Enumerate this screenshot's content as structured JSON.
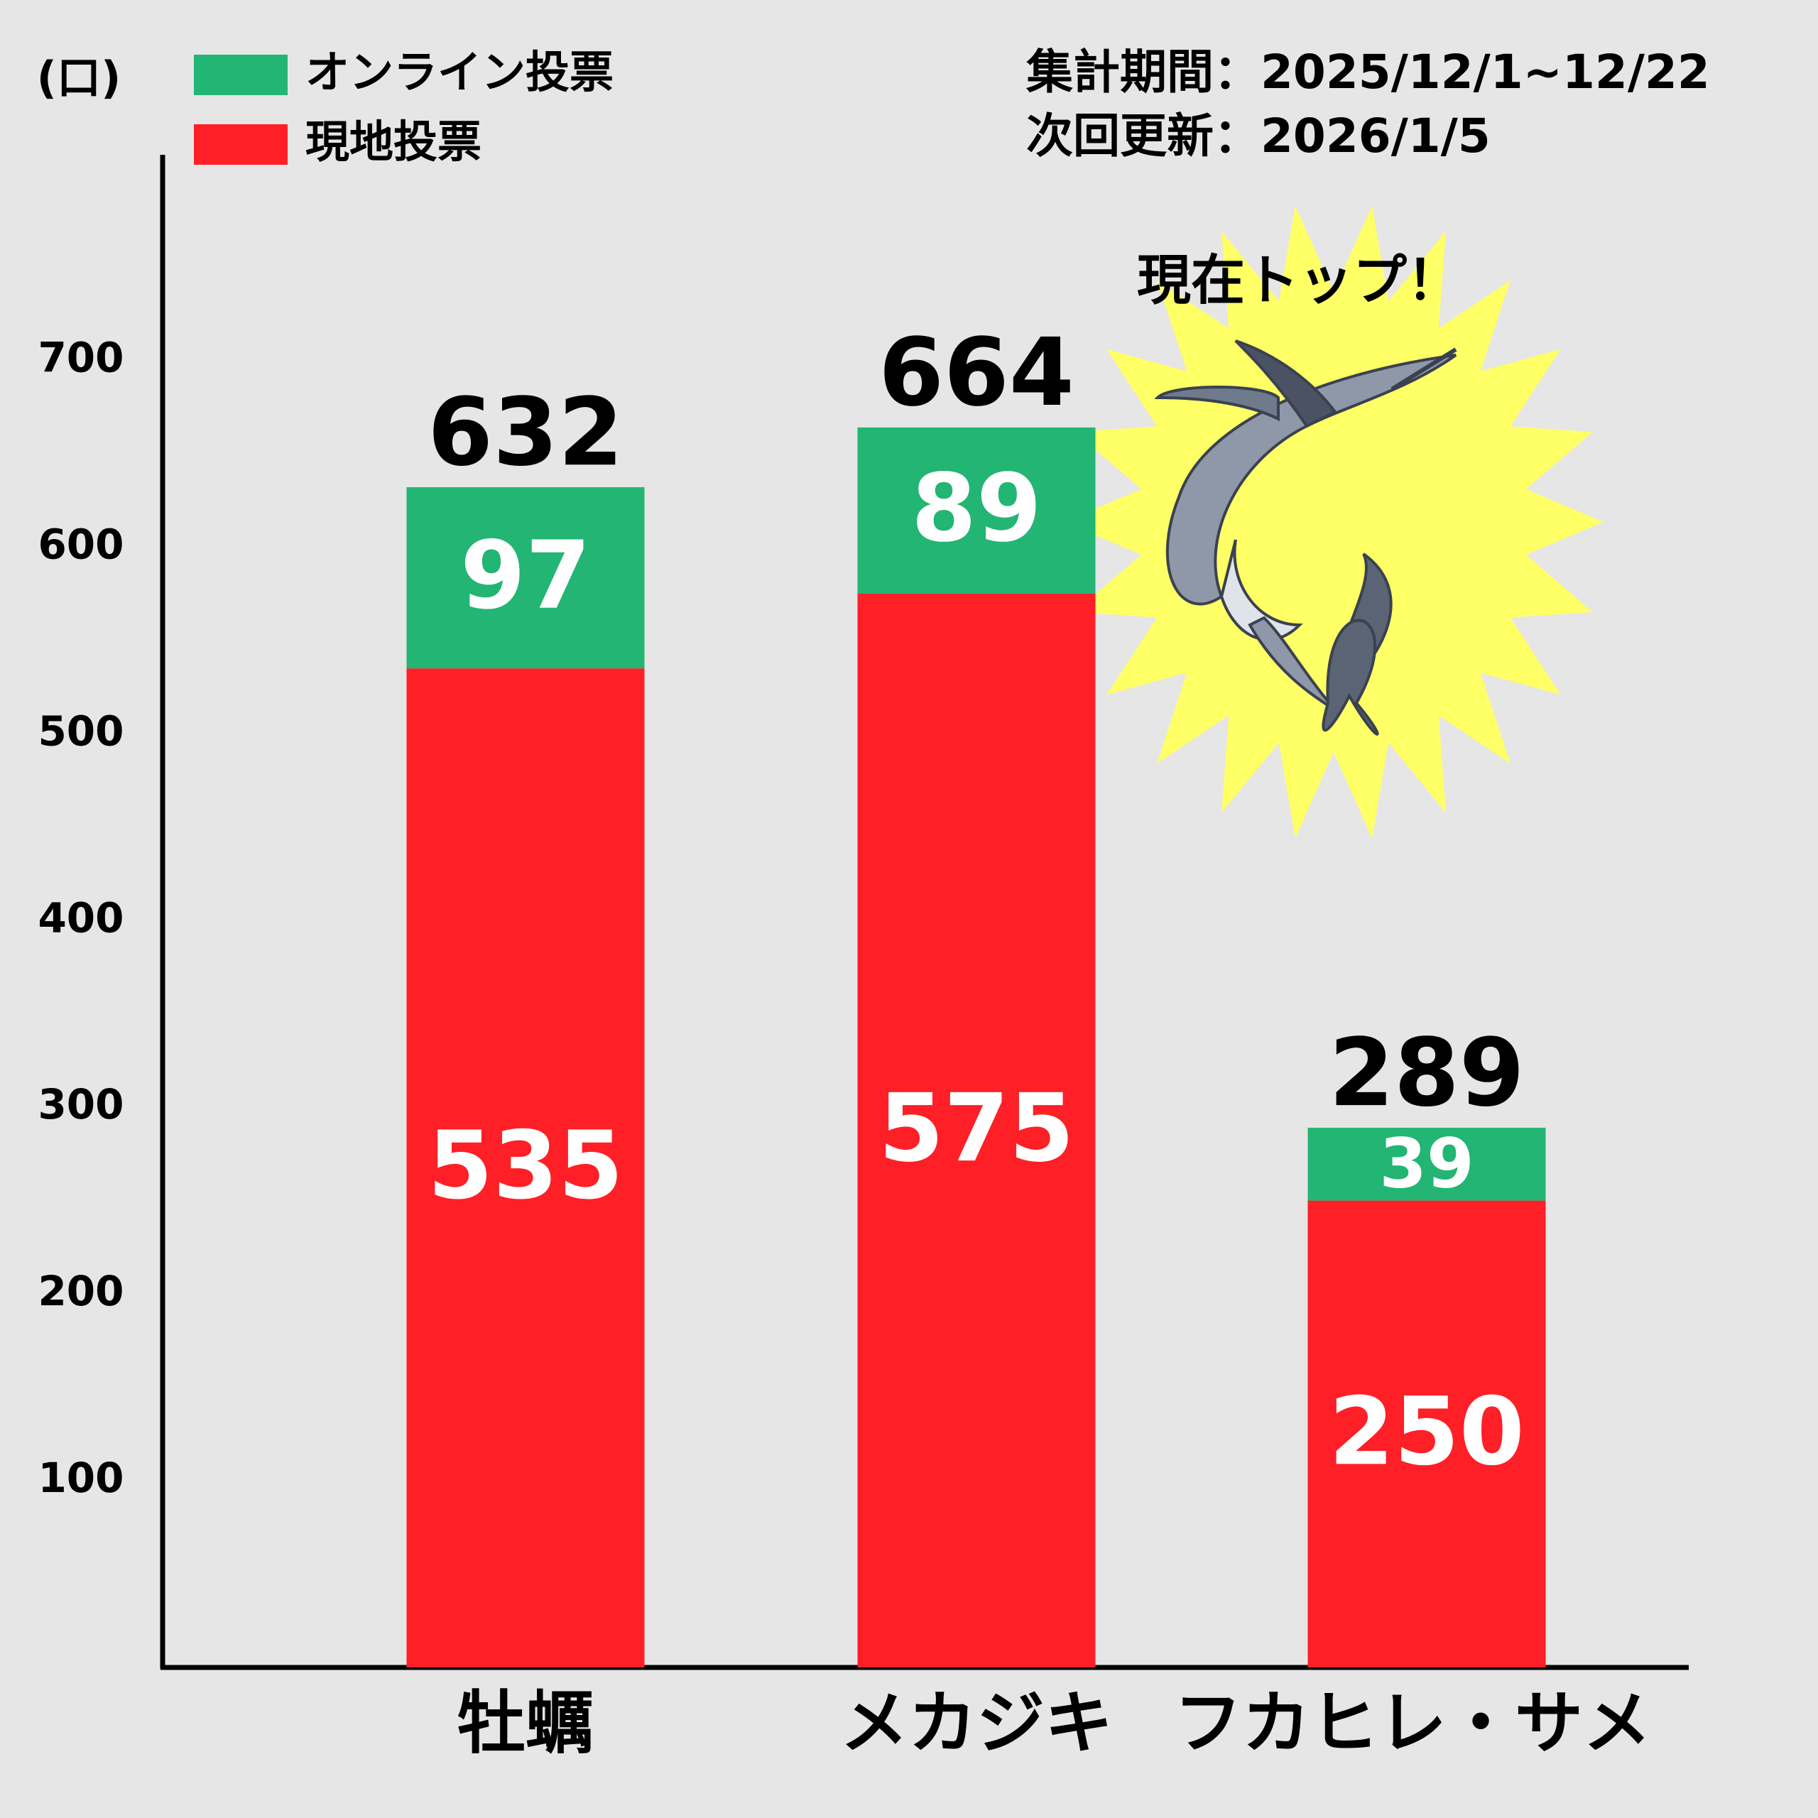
{
  "chart_data": {
    "type": "stacked-bar",
    "unit_label": "(口)",
    "period": "集計期間：2025/12/1~12/22",
    "next_update": "次回更新：2026/1/5",
    "annotation": "現在トップ！",
    "categories": [
      "牡蠣",
      "メカジキ",
      "フカヒレ・サメ"
    ],
    "series": [
      {
        "name": "オンライン投票",
        "color": "#23b573",
        "values": [
          97,
          89,
          39
        ]
      },
      {
        "name": "現地投票",
        "color": "#ff1f26",
        "values": [
          535,
          575,
          250
        ]
      }
    ],
    "totals": [
      632,
      664,
      289
    ],
    "ylim": [
      0,
      810
    ],
    "yticks": [
      100,
      200,
      300,
      400,
      500,
      600,
      700
    ],
    "grid": false
  }
}
